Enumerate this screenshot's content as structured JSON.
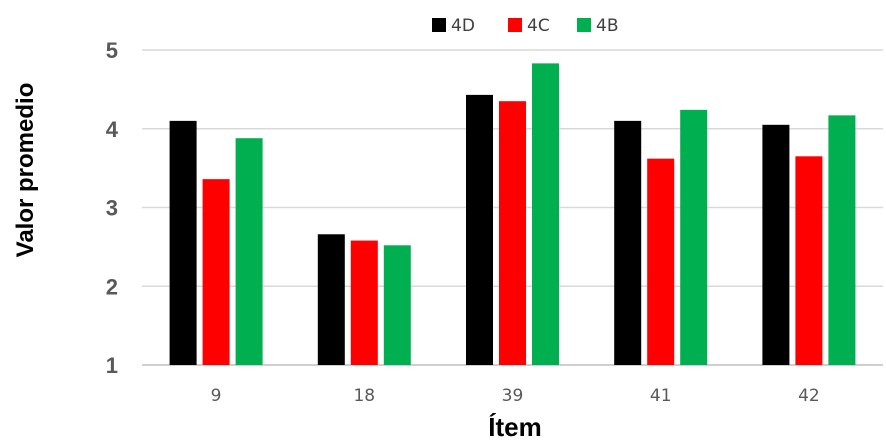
{
  "chart_data": {
    "type": "bar",
    "title": "",
    "xlabel": "Ítem",
    "ylabel": "Valor promedio",
    "categories": [
      "9",
      "18",
      "39",
      "41",
      "42"
    ],
    "series": [
      {
        "name": "4D",
        "color": "#000000",
        "values": [
          4.1,
          2.66,
          4.43,
          4.1,
          4.05
        ]
      },
      {
        "name": "4C",
        "color": "#ff0000",
        "values": [
          3.36,
          2.58,
          4.35,
          3.62,
          3.65
        ]
      },
      {
        "name": "4B",
        "color": "#00b050",
        "values": [
          3.88,
          2.52,
          4.83,
          4.24,
          4.17
        ]
      }
    ],
    "ylim": [
      1,
      5
    ],
    "yticks": [
      "1",
      "2",
      "3",
      "4",
      "5"
    ],
    "grid": true,
    "legend_position": "top"
  }
}
